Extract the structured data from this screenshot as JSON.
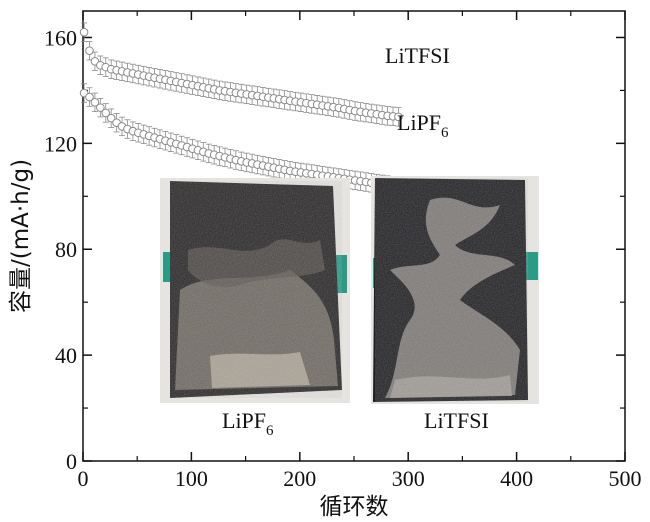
{
  "chart_data": {
    "type": "scatter",
    "xlabel": "循环数",
    "ylabel": "容量/(mA·h/g)",
    "xlim": [
      0,
      500
    ],
    "ylim": [
      0,
      170
    ],
    "x_ticks": [
      "0",
      "100",
      "200",
      "300",
      "400",
      "500"
    ],
    "y_ticks": [
      "0",
      "40",
      "80",
      "120",
      "160"
    ],
    "x_tick_values": [
      0,
      100,
      200,
      300,
      400,
      500
    ],
    "y_tick_values": [
      0,
      40,
      80,
      120,
      160
    ],
    "grid": false,
    "marker": "open-circle-with-error-bars",
    "series": [
      {
        "name": "LiTFSI",
        "color": "#8a8a8a",
        "x_start": 1,
        "x_step": 5,
        "values": [
          162,
          155,
          151,
          149.5,
          148.8,
          148,
          147.6,
          147.2,
          146.8,
          146.4,
          146,
          145.6,
          145.2,
          144.8,
          144.4,
          144,
          143.6,
          143.2,
          142.8,
          142.4,
          142,
          141.6,
          141.2,
          140.8,
          140.4,
          140,
          139.7,
          139.4,
          139.1,
          138.8,
          138.5,
          138.2,
          137.9,
          137.6,
          137.3,
          137,
          136.7,
          136.4,
          136.1,
          135.8,
          135.5,
          135.2,
          134.9,
          134.6,
          134.3,
          134,
          133.7,
          133.4,
          133,
          132.6,
          132.2,
          131.9,
          131.6,
          131.3,
          131,
          130.7,
          130.4,
          130.2,
          130
        ],
        "error": 3.5
      },
      {
        "name": "LiPF6",
        "color": "#8a8a8a",
        "x_start": 1,
        "x_step": 5,
        "values": [
          139,
          137.5,
          135.5,
          133.5,
          131.5,
          129.5,
          127.8,
          126.4,
          125.4,
          124.6,
          124,
          123.4,
          122.8,
          122.2,
          121.6,
          121,
          120.4,
          119.8,
          119.2,
          118.6,
          118,
          117.4,
          116.8,
          116.2,
          115.7,
          115.2,
          114.7,
          114.2,
          113.7,
          113.2,
          112.8,
          112.4,
          112,
          111.6,
          111.2,
          110.8,
          110.4,
          110,
          109.6,
          109.3,
          109,
          108.7,
          108.4,
          108.1,
          107.8,
          107.5,
          107.2,
          106.9,
          106.6,
          106.3,
          106,
          105.7,
          105.4,
          105.1,
          104.8,
          104.5,
          104.2,
          104,
          104
        ],
        "error": 3.5
      }
    ],
    "series_labels": {
      "litfsi": "LiTFSI",
      "lipf6_base": "LiPF",
      "lipf6_sub": "6"
    },
    "inset_photos": [
      {
        "caption_base": "LiPF",
        "caption_sub": "6"
      },
      {
        "caption_base": "LiTFSI",
        "caption_sub": ""
      }
    ]
  }
}
